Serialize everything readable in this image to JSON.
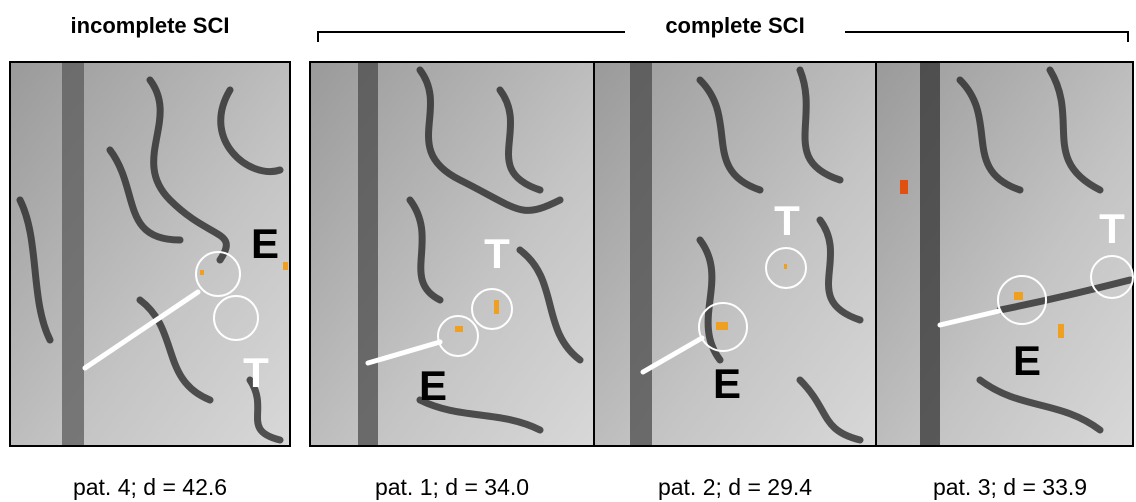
{
  "header": {
    "left": "incomplete SCI",
    "right": "complete SCI"
  },
  "panels": [
    {
      "caption": "pat. 4; d = 42.6",
      "label_e": "E",
      "label_t": "T"
    },
    {
      "caption": "pat. 1; d = 34.0",
      "label_e": "E",
      "label_t": "T"
    },
    {
      "caption": "pat. 2; d = 29.4",
      "label_e": "E",
      "label_t": "T"
    },
    {
      "caption": "pat. 3; d = 33.9",
      "label_e": "E",
      "label_t": "T"
    }
  ]
}
